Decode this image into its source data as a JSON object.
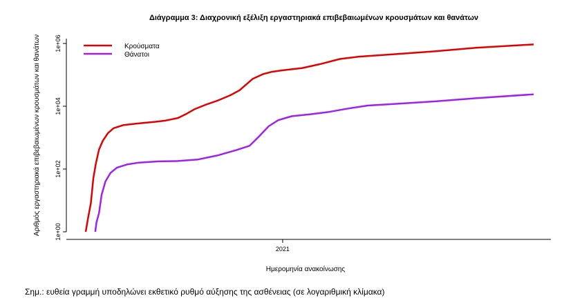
{
  "chart_data": {
    "type": "line",
    "title": "Διάγραμμα 3: Διαχρονική εξέλιξη εργαστηριακά επιβεβαιωμένων κρουσμάτων και θανάτων",
    "xlabel": "Ημερομηνία ανακοίνωσης",
    "ylabel": "Αριθμός εργαστηριακά επιβεβαιωμένων κρουσμάτων και θανάτων",
    "x_range": [
      "2020-02-26",
      "2022-01-31"
    ],
    "x_ticks": [
      {
        "date": "2021-01-01",
        "label": "2021"
      }
    ],
    "y_scale": "log10",
    "y_range": [
      1,
      1000000
    ],
    "y_ticks": [
      {
        "value": 1,
        "label": "1e+00"
      },
      {
        "value": 100,
        "label": "1e+02"
      },
      {
        "value": 10000,
        "label": "1e+04"
      },
      {
        "value": 1000000,
        "label": "1e+06"
      }
    ],
    "grid": false,
    "legend_position": "top-left",
    "series": [
      {
        "name": "Κρούσματα",
        "color": "#e00000",
        "points": [
          [
            "2020-02-26",
            1
          ],
          [
            "2020-03-01",
            3
          ],
          [
            "2020-03-05",
            8
          ],
          [
            "2020-03-09",
            50
          ],
          [
            "2020-03-13",
            150
          ],
          [
            "2020-03-18",
            420
          ],
          [
            "2020-03-24",
            800
          ],
          [
            "2020-04-01",
            1400
          ],
          [
            "2020-04-10",
            2000
          ],
          [
            "2020-04-25",
            2500
          ],
          [
            "2020-05-15",
            2800
          ],
          [
            "2020-06-15",
            3200
          ],
          [
            "2020-07-01",
            3500
          ],
          [
            "2020-07-20",
            4200
          ],
          [
            "2020-08-01",
            5500
          ],
          [
            "2020-08-15",
            8000
          ],
          [
            "2020-09-01",
            11000
          ],
          [
            "2020-09-20",
            15000
          ],
          [
            "2020-10-10",
            22000
          ],
          [
            "2020-10-25",
            32000
          ],
          [
            "2020-11-05",
            50000
          ],
          [
            "2020-11-15",
            75000
          ],
          [
            "2020-12-01",
            105000
          ],
          [
            "2020-12-15",
            125000
          ],
          [
            "2021-01-01",
            140000
          ],
          [
            "2021-02-01",
            165000
          ],
          [
            "2021-03-01",
            220000
          ],
          [
            "2021-04-01",
            320000
          ],
          [
            "2021-05-01",
            380000
          ],
          [
            "2021-07-01",
            460000
          ],
          [
            "2021-09-01",
            570000
          ],
          [
            "2021-11-01",
            730000
          ],
          [
            "2022-01-31",
            930000
          ]
        ]
      },
      {
        "name": "Θάνατοι",
        "color": "#a020f0",
        "points": [
          [
            "2020-03-12",
            1
          ],
          [
            "2020-03-14",
            2
          ],
          [
            "2020-03-18",
            4
          ],
          [
            "2020-03-22",
            15
          ],
          [
            "2020-03-28",
            40
          ],
          [
            "2020-04-05",
            75
          ],
          [
            "2020-04-15",
            110
          ],
          [
            "2020-05-01",
            140
          ],
          [
            "2020-05-20",
            160
          ],
          [
            "2020-06-20",
            175
          ],
          [
            "2020-07-20",
            180
          ],
          [
            "2020-08-20",
            200
          ],
          [
            "2020-09-20",
            270
          ],
          [
            "2020-10-20",
            400
          ],
          [
            "2020-11-10",
            550
          ],
          [
            "2020-11-25",
            1100
          ],
          [
            "2020-12-10",
            2300
          ],
          [
            "2020-12-25",
            3600
          ],
          [
            "2021-01-15",
            4800
          ],
          [
            "2021-02-15",
            5600
          ],
          [
            "2021-03-15",
            6600
          ],
          [
            "2021-04-15",
            8500
          ],
          [
            "2021-05-15",
            10500
          ],
          [
            "2021-07-01",
            12000
          ],
          [
            "2021-09-01",
            14500
          ],
          [
            "2021-11-01",
            18000
          ],
          [
            "2022-01-31",
            24000
          ]
        ]
      }
    ]
  },
  "footer": {
    "note": "Σημ.: ευθεία γραμμή υποδηλώνει εκθετικό ρυθμό αύξησης της ασθένειας (σε λογαριθμική κλίμακα)"
  }
}
